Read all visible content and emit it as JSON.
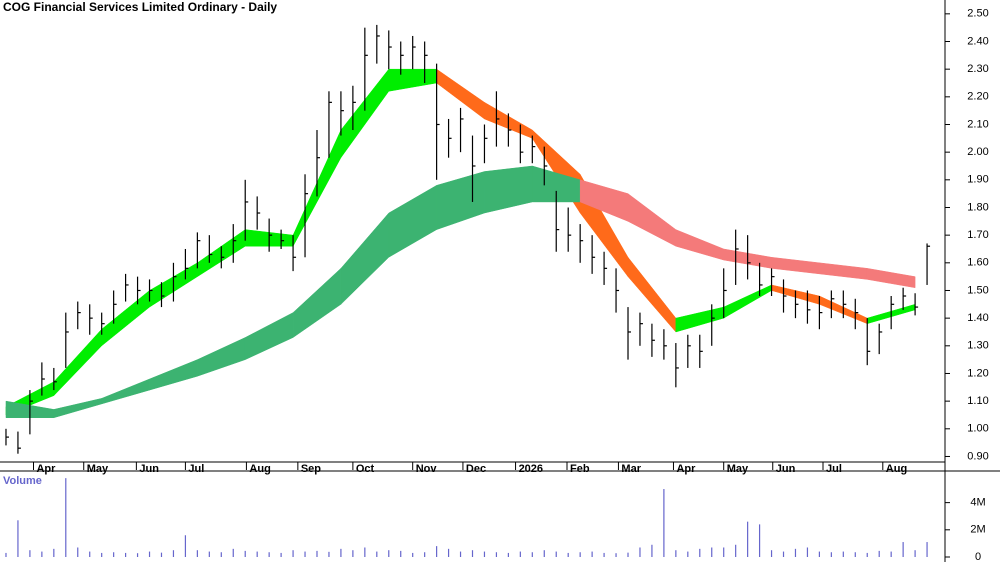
{
  "chart_data": [
    {
      "type": "ohlc",
      "title": "COG Financial Services Limited Ordinary - Daily",
      "xlim": [
        -0.5,
        78.5
      ],
      "ylim": [
        0.88,
        2.55
      ],
      "yticks": [
        {
          "value": 0.9,
          "label": "0.90"
        },
        {
          "value": 1.0,
          "label": "1.00"
        },
        {
          "value": 1.1,
          "label": "1.10"
        },
        {
          "value": 1.2,
          "label": "1.20"
        },
        {
          "value": 1.3,
          "label": "1.30"
        },
        {
          "value": 1.4,
          "label": "1.40"
        },
        {
          "value": 1.5,
          "label": "1.50"
        },
        {
          "value": 1.6,
          "label": "1.60"
        },
        {
          "value": 1.7,
          "label": "1.70"
        },
        {
          "value": 1.8,
          "label": "1.80"
        },
        {
          "value": 1.9,
          "label": "1.90"
        },
        {
          "value": 2.0,
          "label": "2.00"
        },
        {
          "value": 2.1,
          "label": "2.10"
        },
        {
          "value": 2.2,
          "label": "2.20"
        },
        {
          "value": 2.3,
          "label": "2.30"
        },
        {
          "value": 2.4,
          "label": "2.40"
        },
        {
          "value": 2.5,
          "label": "2.50"
        }
      ],
      "xticks": [
        {
          "value": 2.3,
          "label": "Apr"
        },
        {
          "value": 6.5,
          "label": "May"
        },
        {
          "value": 10.9,
          "label": "Jun"
        },
        {
          "value": 15.0,
          "label": "Jul"
        },
        {
          "value": 20.1,
          "label": "Aug"
        },
        {
          "value": 24.4,
          "label": "Sep"
        },
        {
          "value": 29.0,
          "label": "Oct"
        },
        {
          "value": 34.0,
          "label": "Nov"
        },
        {
          "value": 38.2,
          "label": "Dec"
        },
        {
          "value": 42.6,
          "label": "2026"
        },
        {
          "value": 46.9,
          "label": "Feb"
        },
        {
          "value": 51.2,
          "label": "Mar"
        },
        {
          "value": 55.8,
          "label": "Apr"
        },
        {
          "value": 60.0,
          "label": "May"
        },
        {
          "value": 64.1,
          "label": "Jun"
        },
        {
          "value": 68.3,
          "label": "Jul"
        },
        {
          "value": 73.3,
          "label": "Aug"
        }
      ],
      "bar_color": "#000000",
      "close": [
        0.97,
        0.93,
        1.1,
        1.18,
        1.17,
        1.35,
        1.42,
        1.4,
        1.38,
        1.45,
        1.52,
        1.5,
        1.5,
        1.48,
        1.55,
        1.58,
        1.68,
        1.63,
        1.62,
        1.68,
        1.82,
        1.78,
        1.7,
        1.68,
        1.62,
        1.85,
        1.98,
        2.18,
        2.15,
        2.18,
        2.35,
        2.42,
        2.38,
        2.35,
        2.38,
        2.35,
        2.1,
        2.05,
        2.12,
        1.95,
        2.05,
        2.12,
        2.08,
        2.0,
        2.02,
        1.95,
        1.72,
        1.7,
        1.68,
        1.62,
        1.58,
        1.5,
        1.35,
        1.38,
        1.32,
        1.3,
        1.22,
        1.3,
        1.28,
        1.4,
        1.5,
        1.65,
        1.6,
        1.52,
        1.55,
        1.48,
        1.45,
        1.43,
        1.42,
        1.47,
        1.45,
        1.42,
        1.28,
        1.35,
        1.45,
        1.48,
        1.44,
        1.66
      ],
      "high": [
        1.0,
        0.99,
        1.14,
        1.24,
        1.22,
        1.42,
        1.46,
        1.45,
        1.42,
        1.5,
        1.56,
        1.55,
        1.54,
        1.53,
        1.6,
        1.65,
        1.71,
        1.7,
        1.66,
        1.74,
        1.9,
        1.84,
        1.76,
        1.72,
        1.7,
        1.92,
        2.08,
        2.22,
        2.22,
        2.24,
        2.45,
        2.46,
        2.44,
        2.4,
        2.42,
        2.4,
        2.32,
        2.12,
        2.16,
        2.06,
        2.1,
        2.22,
        2.14,
        2.1,
        2.06,
        2.02,
        1.86,
        1.8,
        1.74,
        1.7,
        1.64,
        1.58,
        1.44,
        1.42,
        1.38,
        1.36,
        1.31,
        1.34,
        1.34,
        1.45,
        1.58,
        1.72,
        1.7,
        1.6,
        1.58,
        1.54,
        1.5,
        1.5,
        1.48,
        1.5,
        1.5,
        1.47,
        1.4,
        1.38,
        1.48,
        1.51,
        1.49,
        1.67
      ],
      "low": [
        0.94,
        0.91,
        0.98,
        1.12,
        1.14,
        1.22,
        1.36,
        1.34,
        1.34,
        1.38,
        1.46,
        1.45,
        1.46,
        1.44,
        1.46,
        1.54,
        1.58,
        1.6,
        1.58,
        1.6,
        1.68,
        1.72,
        1.64,
        1.65,
        1.57,
        1.62,
        1.84,
        1.98,
        2.06,
        2.08,
        2.15,
        2.32,
        2.3,
        2.28,
        2.3,
        2.25,
        1.9,
        1.98,
        2.0,
        1.82,
        1.96,
        2.02,
        2.02,
        1.96,
        1.96,
        1.88,
        1.64,
        1.64,
        1.6,
        1.56,
        1.52,
        1.42,
        1.25,
        1.3,
        1.26,
        1.25,
        1.15,
        1.22,
        1.22,
        1.3,
        1.4,
        1.52,
        1.54,
        1.48,
        1.48,
        1.42,
        1.4,
        1.38,
        1.36,
        1.4,
        1.4,
        1.36,
        1.23,
        1.27,
        1.36,
        1.43,
        1.41,
        1.52
      ],
      "bands": [
        {
          "x": [
            0,
            4,
            8,
            12,
            16,
            20,
            24,
            28,
            32,
            36,
            40,
            44,
            48,
            52,
            56,
            60,
            64,
            68,
            72,
            76
          ],
          "lower": [
            1.05,
            1.12,
            1.3,
            1.44,
            1.55,
            1.66,
            1.66,
            1.98,
            2.22,
            2.25,
            2.12,
            2.05,
            1.78,
            1.55,
            1.35,
            1.4,
            1.5,
            1.45,
            1.38,
            1.43
          ],
          "upper": [
            1.08,
            1.17,
            1.36,
            1.5,
            1.6,
            1.72,
            1.7,
            2.08,
            2.3,
            2.3,
            2.18,
            2.08,
            1.92,
            1.62,
            1.4,
            1.44,
            1.52,
            1.48,
            1.4,
            1.45
          ],
          "up_color": "#00ee00",
          "down_color": "#ff6a1a"
        },
        {
          "x": [
            0,
            4,
            8,
            12,
            16,
            20,
            24,
            28,
            32,
            36,
            40,
            44,
            48,
            52,
            56,
            60,
            64,
            68,
            72,
            76
          ],
          "lower": [
            1.04,
            1.04,
            1.09,
            1.14,
            1.19,
            1.25,
            1.33,
            1.45,
            1.62,
            1.72,
            1.78,
            1.82,
            1.82,
            1.75,
            1.66,
            1.61,
            1.58,
            1.56,
            1.54,
            1.51
          ],
          "upper": [
            1.1,
            1.07,
            1.11,
            1.18,
            1.25,
            1.33,
            1.42,
            1.58,
            1.78,
            1.88,
            1.93,
            1.95,
            1.9,
            1.85,
            1.72,
            1.65,
            1.62,
            1.6,
            1.58,
            1.55
          ],
          "up_color": "#3cb371",
          "down_color": "#f47a7a"
        }
      ]
    },
    {
      "type": "volume",
      "title": "Volume",
      "xlim": [
        -0.5,
        78.5
      ],
      "ylim": [
        0,
        6400000
      ],
      "color": "#6666cc",
      "yticks": [
        0,
        {
          "value": 2000000,
          "label": "2M"
        },
        {
          "value": 4000000,
          "label": "4M"
        }
      ],
      "values": [
        300000,
        2700000,
        500000,
        400000,
        600000,
        5800000,
        700000,
        400000,
        300000,
        350000,
        300000,
        280000,
        400000,
        320000,
        500000,
        1600000,
        500000,
        400000,
        350000,
        600000,
        450000,
        400000,
        350000,
        300000,
        500000,
        400000,
        450000,
        380000,
        600000,
        500000,
        700000,
        400000,
        500000,
        450000,
        300000,
        350000,
        800000,
        600000,
        400000,
        500000,
        400000,
        350000,
        300000,
        400000,
        350000,
        500000,
        400000,
        300000,
        350000,
        400000,
        300000,
        280000,
        320000,
        700000,
        900000,
        5000000,
        500000,
        400000,
        600000,
        700000,
        700000,
        900000,
        2600000,
        2400000,
        500000,
        400000,
        600000,
        700000,
        400000,
        350000,
        400000,
        350000,
        300000,
        450000,
        400000,
        1100000,
        500000,
        1100000
      ]
    }
  ]
}
